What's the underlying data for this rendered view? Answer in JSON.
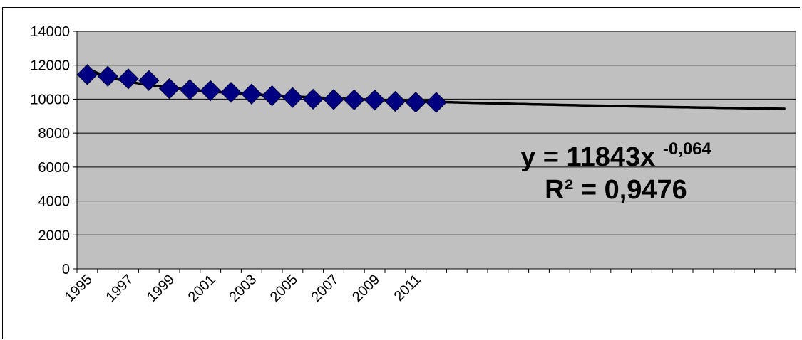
{
  "chart_data": {
    "type": "scatter",
    "title": "",
    "xlabel": "",
    "ylabel": "",
    "ylim": [
      0,
      14000
    ],
    "y_ticks": [
      "0",
      "2000",
      "4000",
      "6000",
      "8000",
      "10000",
      "12000",
      "14000"
    ],
    "x_tick_labels": [
      "1995",
      "1997",
      "1999",
      "2001",
      "2003",
      "2005",
      "2007",
      "2009",
      "2011"
    ],
    "x_categories_total": 35,
    "grid": "horizontal",
    "background_color": "#c0c0c0",
    "series": [
      {
        "marker": "diamond",
        "color": "#000080",
        "x": [
          1995,
          1996,
          1997,
          1998,
          1999,
          2000,
          2001,
          2002,
          2003,
          2004,
          2005,
          2006,
          2007,
          2008,
          2009,
          2010,
          2011,
          2012
        ],
        "y": [
          11450,
          11350,
          11200,
          11100,
          10620,
          10560,
          10500,
          10400,
          10300,
          10200,
          10100,
          10000,
          9980,
          9960,
          9950,
          9870,
          9820,
          9810
        ]
      }
    ],
    "trendline": {
      "type": "power",
      "a": 11843,
      "b": -0.064,
      "color": "#000000",
      "forecast_points": 35
    },
    "annotation": {
      "equation_prefix": "y = 11843x",
      "equation_exponent": "-0,064",
      "r_squared": "R² = 0,9476"
    }
  }
}
